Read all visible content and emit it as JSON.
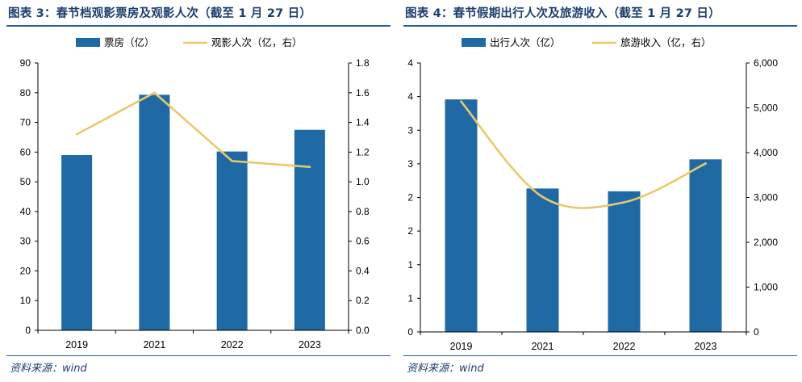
{
  "colors": {
    "bar": "#1f6aa5",
    "line": "#e8c96a",
    "title": "#1b3f6f",
    "rule": "#1f5c99"
  },
  "chart_data": [
    {
      "type": "bar",
      "title": "图表 3：春节档观影票房及观影人次（截至 1 月 27 日）",
      "source": "资料来源：wind",
      "categories": [
        "2019",
        "2021",
        "2022",
        "2023"
      ],
      "series": [
        {
          "name": "票房（亿）",
          "kind": "bar",
          "axis": "left",
          "values": [
            59,
            79.3,
            60.2,
            67.5
          ]
        },
        {
          "name": "观影人次（亿，右）",
          "kind": "line",
          "axis": "right",
          "values": [
            1.32,
            1.6,
            1.14,
            1.1
          ]
        }
      ],
      "y_left": {
        "min": 0,
        "max": 90,
        "step": 10,
        "tick_labels": [
          "0",
          "10",
          "20",
          "30",
          "40",
          "50",
          "60",
          "70",
          "80",
          "90"
        ]
      },
      "y_right": {
        "min": 0,
        "max": 1.8,
        "step": 0.2,
        "tick_labels": [
          "0.0",
          "0.2",
          "0.4",
          "0.6",
          "0.8",
          "1.0",
          "1.2",
          "1.4",
          "1.6",
          "1.8"
        ]
      },
      "legend": "top-center"
    },
    {
      "type": "bar",
      "title": "图表 4：春节假期出行人次及旅游收入（截至 1 月 27 日）",
      "source": "资料来源：wind",
      "categories": [
        "2019",
        "2021",
        "2022",
        "2023"
      ],
      "series": [
        {
          "name": "出行人次（亿）",
          "kind": "bar",
          "axis": "left",
          "values": [
            4.15,
            2.56,
            2.51,
            3.08
          ]
        },
        {
          "name": "旅游收入（亿，右）",
          "kind": "line",
          "axis": "right",
          "values": [
            5139,
            3011,
            2892,
            3758
          ]
        }
      ],
      "y_left": {
        "min": 0,
        "max": 4.8,
        "step": 0.6,
        "tick_labels": [
          "0",
          "1",
          "1",
          "2",
          "2",
          "3",
          "3",
          "4",
          "4"
        ]
      },
      "y_right": {
        "min": 0,
        "max": 6000,
        "step": 1000,
        "tick_labels": [
          "0",
          "1,000",
          "2,000",
          "3,000",
          "4,000",
          "5,000",
          "6,000"
        ]
      },
      "legend": "top-center"
    }
  ]
}
